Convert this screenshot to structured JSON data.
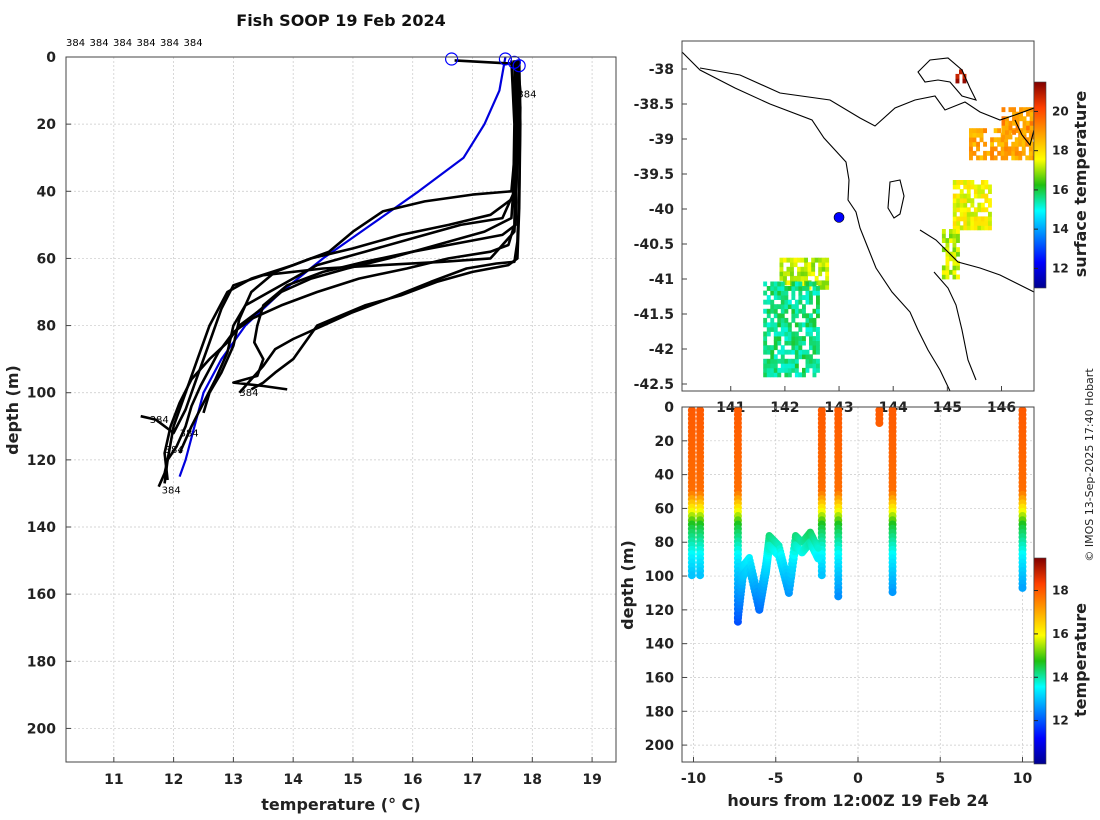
{
  "title": "Fish SOOP 19 Feb 2024",
  "credit": "© IMOS 13-Sep-2025 17:40 Hobart",
  "colors": {
    "profiles": "#000000",
    "climatology": "#0000dd",
    "marker": "#0000ff"
  },
  "chart_data": [
    {
      "type": "line",
      "name": "depth-temperature profiles",
      "xlabel": "temperature (° C)",
      "ylabel": "depth (m)",
      "xlim": [
        10.2,
        19.4
      ],
      "ylim": [
        210,
        0
      ],
      "xticks": [
        11,
        12,
        13,
        14,
        15,
        16,
        17,
        18,
        19
      ],
      "yticks": [
        0,
        20,
        40,
        60,
        80,
        100,
        120,
        140,
        160,
        180,
        200
      ],
      "grid": true,
      "top_labels": [
        "384",
        "384",
        "384",
        "384",
        "384",
        "384"
      ],
      "profile_tags": [
        {
          "text": "384",
          "t": 17.75,
          "d": 12
        },
        {
          "text": "384",
          "t": 13.1,
          "d": 101
        },
        {
          "text": "384",
          "t": 11.6,
          "d": 109
        },
        {
          "text": "384",
          "t": 12.1,
          "d": 113
        },
        {
          "text": "384",
          "t": 11.85,
          "d": 118
        },
        {
          "text": "384",
          "t": 11.8,
          "d": 130
        }
      ],
      "surface_markers": [
        {
          "t": 16.65,
          "d": 0
        },
        {
          "t": 17.55,
          "d": 0
        },
        {
          "t": 17.7,
          "d": 1
        },
        {
          "t": 17.78,
          "d": 2
        }
      ],
      "series": [
        {
          "name": "climatology",
          "color": "#0000dd",
          "points": [
            [
              17.55,
              0
            ],
            [
              17.45,
              10
            ],
            [
              17.2,
              20
            ],
            [
              16.85,
              30
            ],
            [
              16.1,
              40
            ],
            [
              15.3,
              50
            ],
            [
              14.5,
              60
            ],
            [
              13.8,
              70
            ],
            [
              13.2,
              80
            ],
            [
              12.8,
              90
            ],
            [
              12.5,
              100
            ],
            [
              12.35,
              110
            ],
            [
              12.2,
              120
            ],
            [
              12.1,
              125
            ]
          ]
        },
        {
          "name": "profile-1",
          "color": "#000000",
          "points": [
            [
              16.7,
              1
            ],
            [
              17.7,
              2
            ],
            [
              17.75,
              10
            ],
            [
              17.7,
              30
            ],
            [
              17.65,
              40
            ],
            [
              17.0,
              41
            ],
            [
              16.2,
              43
            ],
            [
              15.5,
              46
            ],
            [
              15.0,
              52
            ],
            [
              14.6,
              58
            ],
            [
              14.0,
              62
            ],
            [
              13.3,
              66
            ],
            [
              12.9,
              70
            ],
            [
              12.6,
              80
            ],
            [
              12.4,
              90
            ],
            [
              12.2,
              100
            ],
            [
              12.0,
              110
            ],
            [
              11.9,
              120
            ],
            [
              11.85,
              127
            ]
          ]
        },
        {
          "name": "profile-2",
          "color": "#000000",
          "points": [
            [
              17.75,
              1
            ],
            [
              17.8,
              10
            ],
            [
              17.75,
              30
            ],
            [
              17.72,
              45
            ],
            [
              17.7,
              52
            ],
            [
              17.5,
              56
            ],
            [
              17.3,
              60
            ],
            [
              16.5,
              61
            ],
            [
              15.5,
              62
            ],
            [
              14.5,
              63
            ],
            [
              13.5,
              65
            ],
            [
              13.0,
              68
            ],
            [
              12.8,
              75
            ],
            [
              12.6,
              85
            ],
            [
              12.4,
              95
            ],
            [
              12.2,
              105
            ],
            [
              12.0,
              112
            ],
            [
              11.7,
              108
            ],
            [
              11.45,
              107
            ]
          ]
        },
        {
          "name": "profile-3",
          "color": "#000000",
          "points": [
            [
              17.7,
              1
            ],
            [
              17.75,
              15
            ],
            [
              17.7,
              40
            ],
            [
              17.5,
              48
            ],
            [
              16.8,
              50
            ],
            [
              16.0,
              54
            ],
            [
              15.2,
              58
            ],
            [
              14.4,
              62
            ],
            [
              13.8,
              68
            ],
            [
              13.2,
              74
            ],
            [
              13.0,
              80
            ],
            [
              12.9,
              88
            ],
            [
              12.7,
              96
            ],
            [
              12.5,
              103
            ],
            [
              12.3,
              110
            ],
            [
              12.1,
              118
            ]
          ]
        },
        {
          "name": "profile-4",
          "color": "#000000",
          "points": [
            [
              17.65,
              1
            ],
            [
              17.7,
              20
            ],
            [
              17.68,
              42
            ],
            [
              17.3,
              47
            ],
            [
              16.6,
              50
            ],
            [
              15.8,
              53
            ],
            [
              15.0,
              57
            ],
            [
              14.3,
              60
            ],
            [
              13.7,
              64
            ],
            [
              13.3,
              70
            ],
            [
              13.1,
              78
            ],
            [
              13.0,
              86
            ],
            [
              12.8,
              94
            ],
            [
              12.6,
              100
            ],
            [
              12.5,
              106
            ]
          ]
        },
        {
          "name": "profile-5",
          "color": "#000000",
          "points": [
            [
              17.72,
              1
            ],
            [
              17.78,
              10
            ],
            [
              17.75,
              25
            ],
            [
              17.72,
              50
            ],
            [
              17.5,
              53
            ],
            [
              16.9,
              55
            ],
            [
              16.0,
              58
            ],
            [
              15.2,
              61
            ],
            [
              14.5,
              64
            ],
            [
              13.9,
              68
            ],
            [
              13.5,
              74
            ],
            [
              13.4,
              80
            ],
            [
              13.35,
              85
            ],
            [
              13.5,
              90
            ],
            [
              13.4,
              95
            ],
            [
              13.0,
              97
            ],
            [
              13.5,
              98
            ],
            [
              13.9,
              99
            ]
          ]
        },
        {
          "name": "profile-6",
          "color": "#000000",
          "points": [
            [
              17.7,
              1
            ],
            [
              17.75,
              10
            ],
            [
              17.7,
              35
            ],
            [
              17.65,
              48
            ],
            [
              17.2,
              52
            ],
            [
              16.4,
              56
            ],
            [
              15.6,
              60
            ],
            [
              14.9,
              63
            ],
            [
              14.3,
              66
            ],
            [
              13.8,
              70
            ],
            [
              13.4,
              76
            ],
            [
              13.1,
              80
            ],
            [
              12.9,
              85
            ],
            [
              12.6,
              90
            ],
            [
              12.3,
              96
            ],
            [
              12.1,
              103
            ],
            [
              11.95,
              110
            ],
            [
              11.85,
              118
            ],
            [
              11.9,
              126
            ]
          ]
        },
        {
          "name": "profile-7",
          "color": "#000000",
          "points": [
            [
              17.75,
              1
            ],
            [
              17.8,
              15
            ],
            [
              17.78,
              40
            ],
            [
              17.75,
              55
            ],
            [
              17.7,
              61
            ],
            [
              17.4,
              61.5
            ],
            [
              16.9,
              63
            ],
            [
              16.3,
              67
            ],
            [
              15.6,
              72
            ],
            [
              15.0,
              76
            ],
            [
              14.5,
              80
            ],
            [
              14.0,
              84
            ],
            [
              13.7,
              87
            ],
            [
              13.5,
              92
            ],
            [
              13.3,
              96
            ],
            [
              13.1,
              100
            ]
          ]
        },
        {
          "name": "profile-8",
          "color": "#000000",
          "points": [
            [
              17.78,
              1
            ],
            [
              17.8,
              20
            ],
            [
              17.78,
              45
            ],
            [
              17.75,
              60
            ],
            [
              17.6,
              62
            ],
            [
              17.0,
              64
            ],
            [
              16.4,
              67
            ],
            [
              15.8,
              71
            ],
            [
              15.2,
              74
            ],
            [
              14.8,
              77
            ],
            [
              14.4,
              80
            ],
            [
              14.2,
              85
            ],
            [
              14.0,
              90
            ],
            [
              13.7,
              94
            ],
            [
              13.5,
              97
            ],
            [
              13.3,
              99
            ]
          ]
        },
        {
          "name": "profile-9",
          "color": "#000000",
          "points": [
            [
              17.7,
              1
            ],
            [
              17.72,
              20
            ],
            [
              17.7,
              50
            ],
            [
              17.6,
              56
            ],
            [
              17.3,
              58
            ],
            [
              16.6,
              60
            ],
            [
              15.9,
              63
            ],
            [
              15.1,
              66
            ],
            [
              14.4,
              70
            ],
            [
              13.8,
              74
            ],
            [
              13.3,
              78
            ],
            [
              13.0,
              82
            ],
            [
              12.75,
              88
            ],
            [
              12.6,
              93
            ],
            [
              12.45,
              98
            ],
            [
              12.3,
              104
            ],
            [
              12.2,
              110
            ],
            [
              12.05,
              116
            ],
            [
              11.9,
              120
            ],
            [
              11.85,
              124
            ],
            [
              11.75,
              128
            ]
          ]
        }
      ]
    },
    {
      "type": "heatmap",
      "name": "surface temperature map",
      "xlim": [
        140.1,
        146.6
      ],
      "ylim": [
        -42.6,
        -37.6
      ],
      "xticks": [
        141,
        142,
        143,
        144,
        145,
        146
      ],
      "yticks": [
        -38,
        -38.5,
        -39,
        -39.5,
        -40,
        -40.5,
        -41,
        -41.5,
        -42,
        -42.5
      ],
      "colorbar_label": "surface temperature",
      "colorbar_range": [
        11,
        21.5
      ],
      "colorbar_ticks": [
        12,
        14,
        16,
        18,
        20
      ],
      "vessel_position": {
        "lon": 143.0,
        "lat": -40.12
      },
      "patches": [
        {
          "lon0": 141.9,
          "lon1": 142.8,
          "lat0": -41.15,
          "lat1": -40.7,
          "value": 17.2
        },
        {
          "lon0": 141.6,
          "lon1": 142.6,
          "lat0": -42.4,
          "lat1": -41.1,
          "value": 15.6
        },
        {
          "lon0": 145.1,
          "lon1": 145.8,
          "lat0": -40.3,
          "lat1": -39.6,
          "value": 17.6
        },
        {
          "lon0": 144.9,
          "lon1": 145.2,
          "lat0": -41.0,
          "lat1": -40.3,
          "value": 17.2
        },
        {
          "lon0": 145.4,
          "lon1": 146.6,
          "lat0": -39.3,
          "lat1": -38.9,
          "value": 18.8
        },
        {
          "lon0": 146.0,
          "lon1": 146.6,
          "lat0": -39.0,
          "lat1": -38.6,
          "value": 19.0
        },
        {
          "lon0": 145.15,
          "lon1": 145.3,
          "lat0": -38.2,
          "lat1": -38.05,
          "value": 21.0
        }
      ]
    },
    {
      "type": "scatter",
      "name": "depth time section",
      "xlabel": "hours from 12:00Z 19 Feb 24",
      "ylabel": "depth (m)",
      "xlim": [
        -10.7,
        10.7
      ],
      "ylim": [
        210,
        0
      ],
      "xticks": [
        -10,
        -5,
        0,
        5,
        10
      ],
      "yticks": [
        0,
        20,
        40,
        60,
        80,
        100,
        120,
        140,
        160,
        180,
        200
      ],
      "colorbar_label": "temperature",
      "colorbar_range": [
        10,
        19.5
      ],
      "colorbar_ticks": [
        12,
        14,
        16,
        18
      ],
      "casts": [
        {
          "hour": -10.1,
          "max_depth": 101
        },
        {
          "hour": -9.6,
          "max_depth": 100
        },
        {
          "hour": -7.3,
          "max_depth": 127
        },
        {
          "hour": -2.2,
          "max_depth": 100
        },
        {
          "hour": -1.2,
          "max_depth": 114
        },
        {
          "hour": 1.3,
          "max_depth": 11
        },
        {
          "hour": 2.1,
          "max_depth": 110
        },
        {
          "hour": 10.0,
          "max_depth": 107
        }
      ],
      "bottom_track": [
        {
          "hour": -7.3,
          "depth": 125
        },
        {
          "hour": -7.0,
          "depth": 100
        },
        {
          "hour": -6.6,
          "depth": 95
        },
        {
          "hour": -6.0,
          "depth": 120
        },
        {
          "hour": -5.6,
          "depth": 98
        },
        {
          "hour": -5.4,
          "depth": 82
        },
        {
          "hour": -4.8,
          "depth": 88
        },
        {
          "hour": -4.2,
          "depth": 110
        },
        {
          "hour": -3.8,
          "depth": 82
        },
        {
          "hour": -3.4,
          "depth": 86
        },
        {
          "hour": -2.9,
          "depth": 80
        },
        {
          "hour": -2.4,
          "depth": 90
        }
      ]
    }
  ]
}
